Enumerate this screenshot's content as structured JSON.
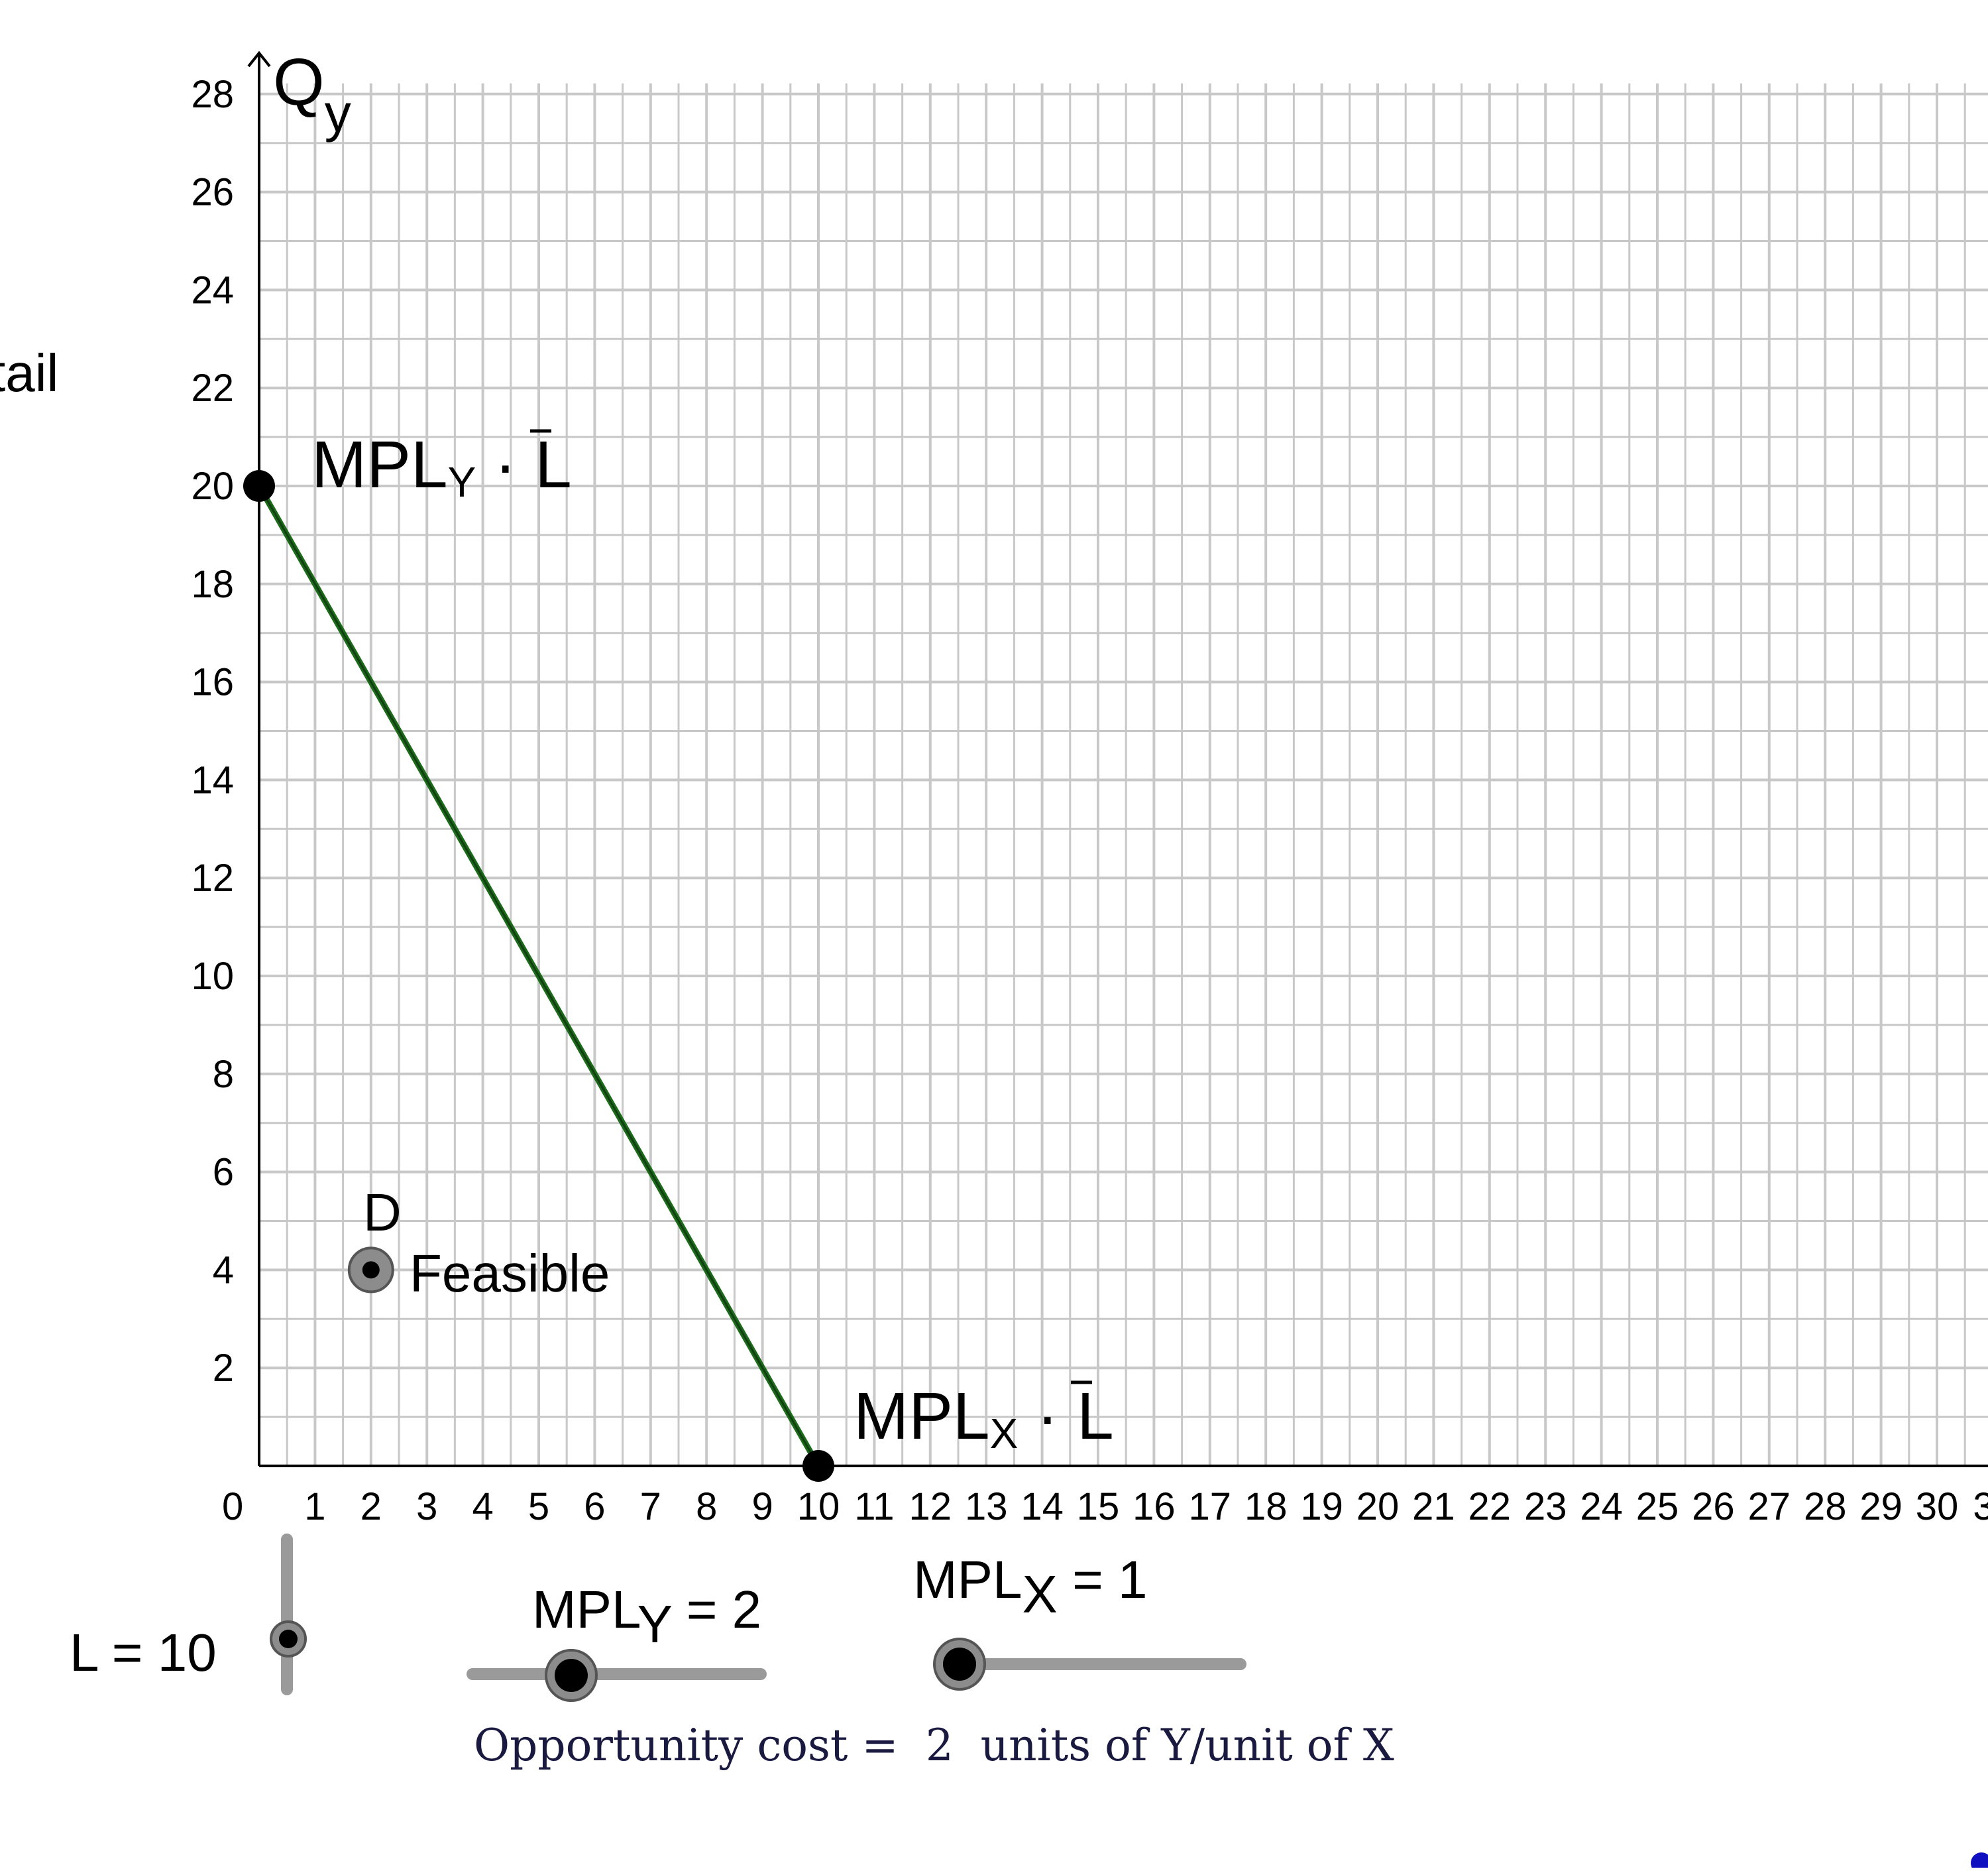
{
  "chart_data": {
    "type": "line",
    "x_ticks": [
      "0",
      "1",
      "2",
      "3",
      "4",
      "5",
      "6",
      "7",
      "8",
      "9",
      "10",
      "11",
      "12",
      "13",
      "14",
      "15",
      "16",
      "17",
      "18",
      "19",
      "20",
      "21",
      "22",
      "23",
      "24",
      "25",
      "26",
      "27",
      "28",
      "29",
      "30",
      "3"
    ],
    "y_ticks": [
      "2",
      "4",
      "6",
      "8",
      "10",
      "12",
      "14",
      "16",
      "18",
      "20",
      "22",
      "24",
      "26",
      "28"
    ],
    "xlim": [
      0,
      31
    ],
    "ylim": [
      0,
      28
    ],
    "grid": true,
    "minor_grid": true,
    "y_axis_label": "Q",
    "y_axis_label_sub": "y",
    "ppf_line": {
      "x": [
        0,
        10
      ],
      "y": [
        20,
        0
      ],
      "color": "#1b6b1b"
    },
    "points": [
      {
        "id": "y-intercept",
        "x": 0,
        "y": 20,
        "label_main": "MPL",
        "label_sub": "Y",
        "label_tail": " · L"
      },
      {
        "id": "x-intercept",
        "x": 10,
        "y": 0,
        "label_main": "MPL",
        "label_sub": "X",
        "label_tail": " · L"
      },
      {
        "id": "D",
        "x": 2,
        "y": 4,
        "name": "D",
        "status": "Feasible"
      }
    ]
  },
  "side_text": "tail",
  "controls": {
    "labor": {
      "label": "L = 10",
      "value": 10
    },
    "mply": {
      "label_main": "MPL",
      "label_sub": "Y",
      "label_tail": " = 2",
      "value": 2
    },
    "mplx": {
      "label_main": "MPL",
      "label_sub": "X",
      "label_tail": " = 1",
      "value": 1
    }
  },
  "opportunity": {
    "prefix": "Opportunity cost = ",
    "value": "2",
    "suffix": " units of Y/unit of X"
  },
  "colors": {
    "grid": "#c8c8c8",
    "axis": "#000000",
    "ppf": "#1b6b1b",
    "slider_track": "#9a9a9a",
    "corner_dot": "#1010c0"
  }
}
